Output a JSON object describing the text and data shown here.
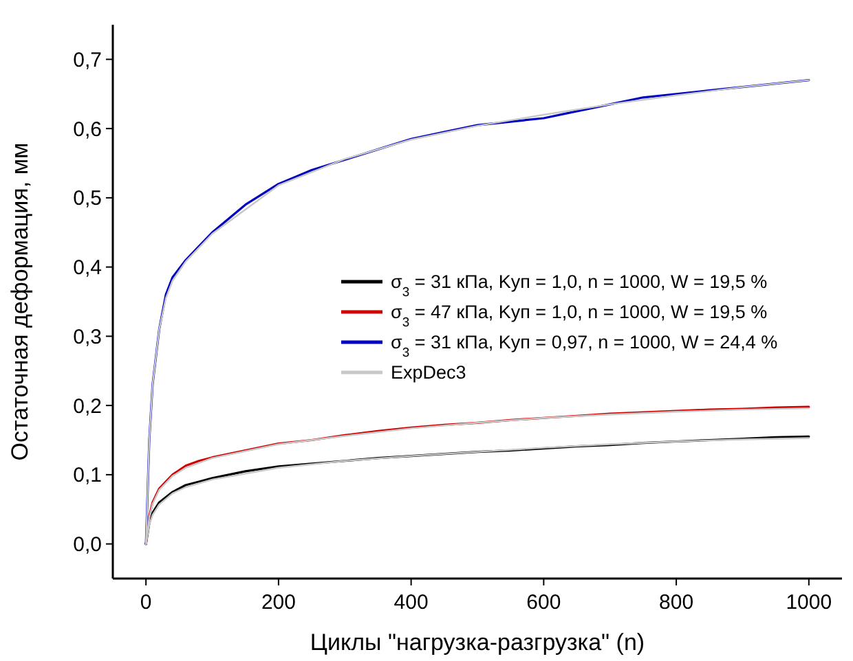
{
  "chart_data": {
    "type": "line",
    "xlabel": "Циклы \"нагрузка-разгрузка\" (n)",
    "ylabel": "Остаточная деформация, мм",
    "xlim": [
      -50,
      1050
    ],
    "ylim": [
      -0.05,
      0.75
    ],
    "xticks": [
      0,
      200,
      400,
      600,
      800,
      1000
    ],
    "yticks": [
      {
        "value": 0,
        "label": "0,0"
      },
      {
        "value": 0.1,
        "label": "0,1"
      },
      {
        "value": 0.2,
        "label": "0,2"
      },
      {
        "value": 0.3,
        "label": "0,3"
      },
      {
        "value": 0.4,
        "label": "0,4"
      },
      {
        "value": 0.5,
        "label": "0,5"
      },
      {
        "value": 0.6,
        "label": "0,6"
      },
      {
        "value": 0.7,
        "label": "0,7"
      }
    ],
    "grid": false,
    "legend": "right",
    "marker": "none",
    "line_style": "solid",
    "series": [
      {
        "name": "σ$_{3}$ = 31 кПа, Kуп = 1,0, n = 1000, W = 19,5 %",
        "color": "#000000",
        "x": [
          0,
          5,
          10,
          20,
          40,
          60,
          80,
          100,
          150,
          200,
          250,
          300,
          350,
          400,
          450,
          500,
          550,
          600,
          650,
          700,
          750,
          800,
          850,
          900,
          950,
          1000
        ],
        "values": [
          0,
          0.03,
          0.045,
          0.06,
          0.075,
          0.085,
          0.09,
          0.095,
          0.105,
          0.112,
          0.116,
          0.12,
          0.124,
          0.127,
          0.13,
          0.133,
          0.135,
          0.138,
          0.141,
          0.143,
          0.146,
          0.148,
          0.15,
          0.152,
          0.154,
          0.155
        ]
      },
      {
        "name": "σ$_{3}$ = 47 кПа, Kуп = 1,0, n = 1000, W = 19,5 %",
        "color": "#d00000",
        "x": [
          0,
          5,
          10,
          20,
          40,
          60,
          80,
          100,
          150,
          200,
          250,
          300,
          350,
          400,
          450,
          500,
          550,
          600,
          650,
          700,
          750,
          800,
          850,
          900,
          950,
          1000
        ],
        "values": [
          0,
          0.04,
          0.06,
          0.08,
          0.1,
          0.113,
          0.12,
          0.125,
          0.135,
          0.145,
          0.15,
          0.157,
          0.163,
          0.168,
          0.172,
          0.175,
          0.179,
          0.182,
          0.185,
          0.188,
          0.19,
          0.192,
          0.194,
          0.195,
          0.197,
          0.198
        ]
      },
      {
        "name": "σ$_{3}$ = 31 кПа, Kуп = 0,97, n = 1000, W = 24,4 %",
        "color": "#0000c0",
        "x": [
          0,
          5,
          10,
          20,
          30,
          40,
          60,
          80,
          100,
          150,
          200,
          250,
          300,
          350,
          400,
          450,
          500,
          550,
          600,
          650,
          700,
          750,
          800,
          850,
          900,
          950,
          1000
        ],
        "values": [
          0,
          0.15,
          0.23,
          0.31,
          0.36,
          0.385,
          0.41,
          0.43,
          0.45,
          0.49,
          0.52,
          0.54,
          0.555,
          0.57,
          0.585,
          0.595,
          0.605,
          0.61,
          0.615,
          0.625,
          0.635,
          0.645,
          0.65,
          0.655,
          0.66,
          0.665,
          0.67
        ]
      },
      {
        "name": "ExpDec3",
        "color": "#c8c8c8",
        "x": [
          0,
          5,
          10,
          20,
          40,
          60,
          100,
          200,
          300,
          400,
          500,
          600,
          700,
          800,
          900,
          1000
        ],
        "values": [
          0,
          0.028,
          0.042,
          0.057,
          0.073,
          0.082,
          0.093,
          0.11,
          0.12,
          0.127,
          0.133,
          0.139,
          0.144,
          0.148,
          0.151,
          0.153
        ]
      },
      {
        "color": "#c8c8c8",
        "x": [
          0,
          5,
          10,
          20,
          40,
          60,
          100,
          200,
          300,
          400,
          500,
          600,
          700,
          800,
          900,
          1000
        ],
        "values": [
          0,
          0.038,
          0.058,
          0.078,
          0.098,
          0.11,
          0.124,
          0.144,
          0.156,
          0.167,
          0.175,
          0.182,
          0.187,
          0.191,
          0.194,
          0.196
        ]
      },
      {
        "color": "#c8c8c8",
        "x": [
          0,
          5,
          10,
          20,
          30,
          40,
          60,
          100,
          200,
          300,
          400,
          500,
          600,
          700,
          800,
          900,
          1000
        ],
        "values": [
          0,
          0.15,
          0.23,
          0.31,
          0.355,
          0.38,
          0.408,
          0.448,
          0.518,
          0.556,
          0.584,
          0.604,
          0.62,
          0.635,
          0.648,
          0.66,
          0.67
        ]
      }
    ]
  }
}
